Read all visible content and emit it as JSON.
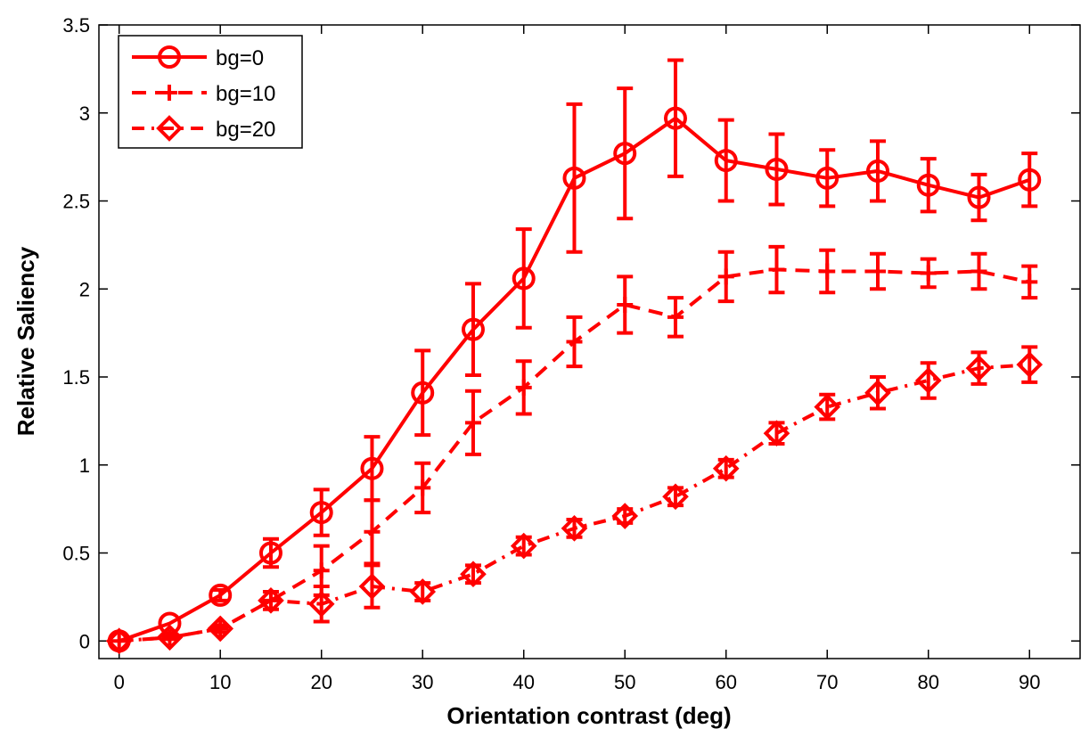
{
  "chart_data": {
    "type": "line",
    "xlabel": "Orientation contrast (deg)",
    "ylabel": "Relative Saliency",
    "xlim": [
      -2,
      95
    ],
    "ylim": [
      -0.1,
      3.5
    ],
    "x_ticks": [
      0,
      10,
      20,
      30,
      40,
      50,
      60,
      70,
      80,
      90
    ],
    "x_tick_labels": [
      "0",
      "10",
      "20",
      "30",
      "40",
      "50",
      "60",
      "70",
      "80",
      "90"
    ],
    "y_ticks": [
      0,
      0.5,
      1,
      1.5,
      2,
      2.5,
      3,
      3.5
    ],
    "y_tick_labels": [
      "0",
      "0.5",
      "1",
      "1.5",
      "2",
      "2.5",
      "3",
      "3.5"
    ],
    "grid": false,
    "legend_position": "top-left",
    "color": "#ff0000",
    "series": [
      {
        "name": "bg=0",
        "line_style": "solid",
        "marker": "circle",
        "x": [
          0,
          5,
          10,
          15,
          20,
          25,
          30,
          35,
          40,
          45,
          50,
          55,
          60,
          65,
          70,
          75,
          80,
          85,
          90
        ],
        "y": [
          0,
          0.1,
          0.26,
          0.5,
          0.73,
          0.98,
          1.41,
          1.77,
          2.06,
          2.63,
          2.77,
          2.97,
          2.73,
          2.68,
          2.63,
          2.67,
          2.59,
          2.52,
          2.62
        ],
        "err": [
          0,
          0,
          0.03,
          0.08,
          0.13,
          0.18,
          0.24,
          0.26,
          0.28,
          0.42,
          0.37,
          0.33,
          0.23,
          0.2,
          0.16,
          0.17,
          0.15,
          0.13,
          0.15
        ]
      },
      {
        "name": "bg=10",
        "line_style": "dashed",
        "marker": "plus",
        "x": [
          0,
          5,
          10,
          15,
          20,
          25,
          30,
          35,
          40,
          45,
          50,
          55,
          60,
          65,
          70,
          75,
          80,
          85,
          90
        ],
        "y": [
          0,
          0.02,
          0.07,
          0.23,
          0.4,
          0.62,
          0.87,
          1.24,
          1.44,
          1.7,
          1.91,
          1.84,
          2.07,
          2.11,
          2.1,
          2.1,
          2.09,
          2.1,
          2.04
        ],
        "err": [
          0,
          0.01,
          0.02,
          0.05,
          0.14,
          0.18,
          0.14,
          0.18,
          0.15,
          0.14,
          0.16,
          0.11,
          0.14,
          0.13,
          0.12,
          0.1,
          0.08,
          0.1,
          0.09
        ]
      },
      {
        "name": "bg=20",
        "line_style": "dashdot",
        "marker": "diamond",
        "x": [
          0,
          5,
          10,
          15,
          20,
          25,
          30,
          35,
          40,
          45,
          50,
          55,
          60,
          65,
          70,
          75,
          80,
          85,
          90
        ],
        "y": [
          0,
          0.02,
          0.07,
          0.23,
          0.21,
          0.31,
          0.28,
          0.38,
          0.54,
          0.64,
          0.71,
          0.82,
          0.98,
          1.18,
          1.33,
          1.41,
          1.48,
          1.55,
          1.57
        ],
        "err": [
          0,
          0,
          0,
          0,
          0.1,
          0.12,
          0.05,
          0.05,
          0.05,
          0.05,
          0.04,
          0.05,
          0.05,
          0.06,
          0.07,
          0.09,
          0.1,
          0.09,
          0.1
        ]
      }
    ]
  }
}
